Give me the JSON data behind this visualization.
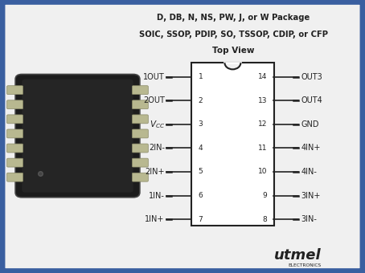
{
  "bg_color": "#f0f0f0",
  "border_color": "#3a5fa0",
  "border_lw": 6,
  "title_line1": "D, DB, N, NS, PW, J, or W Package",
  "title_line2": "SOIC, SSOP, PDIP, SO, TSSOP, CDIP, or CFP",
  "title_line3": "Top View",
  "left_pins": [
    {
      "num": "1",
      "label": "1OUT",
      "vcc": false
    },
    {
      "num": "2",
      "label": "2OUT",
      "vcc": false
    },
    {
      "num": "3",
      "label": "VCC",
      "vcc": true
    },
    {
      "num": "4",
      "label": "2IN-",
      "vcc": false
    },
    {
      "num": "5",
      "label": "2IN+",
      "vcc": false
    },
    {
      "num": "6",
      "label": "1IN-",
      "vcc": false
    },
    {
      "num": "7",
      "label": "1IN+",
      "vcc": false
    }
  ],
  "right_pins": [
    {
      "num": "14",
      "label": "OUT3"
    },
    {
      "num": "13",
      "label": "OUT4"
    },
    {
      "num": "12",
      "label": "GND"
    },
    {
      "num": "11",
      "label": "4IN+"
    },
    {
      "num": "10",
      "label": "4IN-"
    },
    {
      "num": "9",
      "label": "3IN+"
    },
    {
      "num": "8",
      "label": "3IN-"
    }
  ],
  "pin_line_color": "#222222",
  "text_color": "#222222",
  "box_color": "#ffffff",
  "box_edge_color": "#222222",
  "logo_text": "utmel",
  "logo_sub": "ELECTRONICS",
  "logo_color": "#222222"
}
